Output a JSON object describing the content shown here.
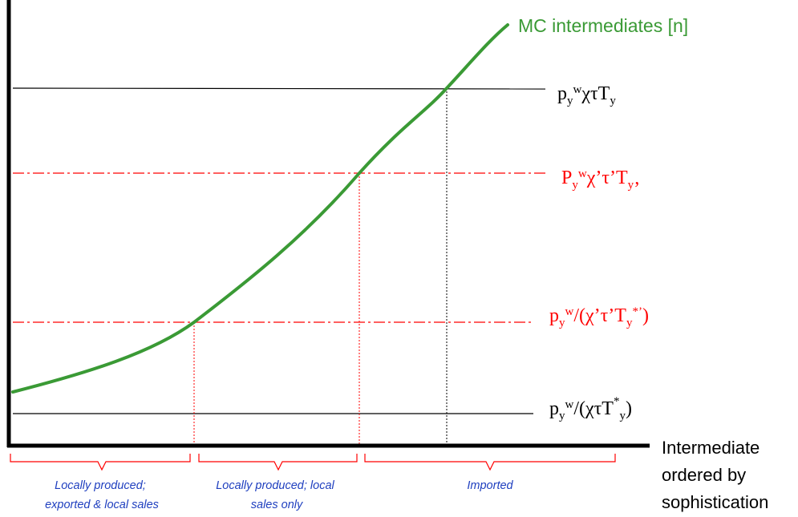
{
  "colors": {
    "curve": "#3a9a35",
    "black_lines": "#000000",
    "red_lines": "#ff0000",
    "region_text": "#1f3fbf",
    "brace": "#ff0000"
  },
  "curve_label": "MC intermediates [n]",
  "x_axis_label": {
    "line1": "Intermediate",
    "line2": "ordered by",
    "line3": "sophistication"
  },
  "levels": [
    {
      "kind": "black-solid",
      "base": "p",
      "sub1": "y",
      "sup1": "w",
      "rest": "χτT",
      "sub2": "y",
      "sup2": "",
      "tail": ""
    },
    {
      "kind": "red-dashdot",
      "base": "P",
      "sub1": "y",
      "sup1": "w",
      "rest": "χ’τ’T",
      "sub2": "y",
      "sup2": "",
      "tail": "’"
    },
    {
      "kind": "red-dashdot",
      "base": "p",
      "sub1": "y",
      "sup1": "w",
      "rest": "/(χ’τ’T",
      "sub2": "y",
      "sup2": "*’",
      "tail": ")"
    },
    {
      "kind": "black-solid",
      "base": "p",
      "sub1": "y",
      "sup1": "w",
      "rest": "/(χτT",
      "sub2": "y",
      "sup2": "*",
      "tail": ")"
    }
  ],
  "regions": [
    {
      "line1": "Locally produced;",
      "line2": "exported & local sales"
    },
    {
      "line1": "Locally produced; local",
      "line2": "sales only"
    },
    {
      "line1": "Imported",
      "line2": ""
    }
  ]
}
